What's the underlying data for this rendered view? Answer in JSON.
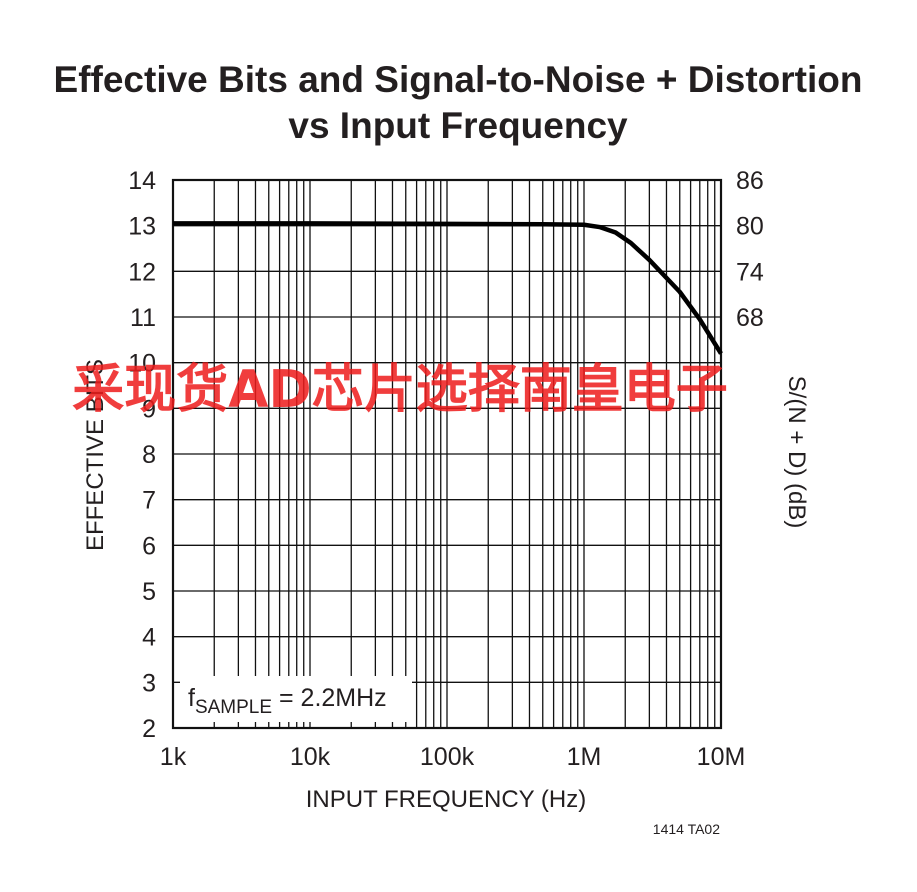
{
  "chart_data": {
    "type": "line",
    "title_line1": "Effective Bits and Signal-to-Noise + Distortion",
    "title_line2": "vs Input Frequency",
    "xlabel": "INPUT FREQUENCY (Hz)",
    "ylabel": "EFFECTIVE BITS",
    "y2label": "S/(N + D) (dB)",
    "xscale": "log",
    "xlim": [
      1000,
      10000000
    ],
    "ylim": [
      2,
      14
    ],
    "grid": true,
    "x_ticks": [
      {
        "value": 1000,
        "label": "1k"
      },
      {
        "value": 10000,
        "label": "10k"
      },
      {
        "value": 100000,
        "label": "100k"
      },
      {
        "value": 1000000,
        "label": "1M"
      },
      {
        "value": 10000000,
        "label": "10M"
      }
    ],
    "y_ticks": [
      2,
      3,
      4,
      5,
      6,
      7,
      8,
      9,
      10,
      11,
      12,
      13,
      14
    ],
    "y2_ticks": [
      {
        "label": "86",
        "bits": 14
      },
      {
        "label": "80",
        "bits": 13
      },
      {
        "label": "74",
        "bits": 12
      },
      {
        "label": "68",
        "bits": 11
      }
    ],
    "annotation": {
      "main": "f",
      "sub": "SAMPLE",
      "rest": " = 2.2MHz"
    },
    "series": [
      {
        "x": [
          1000,
          10000,
          100000,
          500000,
          1000000,
          1300000,
          1700000,
          2200000,
          3000000,
          5000000,
          7000000,
          10000000
        ],
        "values": [
          13.05,
          13.05,
          13.04,
          13.03,
          13.02,
          12.97,
          12.85,
          12.62,
          12.25,
          11.55,
          10.95,
          10.2
        ]
      }
    ]
  },
  "figure_id": "1414 TA02",
  "watermark": "采现货AD芯片选择南皇电子",
  "colors": {
    "line": "#000000",
    "grid": "#111111",
    "watermark": "#ee1c1c"
  }
}
